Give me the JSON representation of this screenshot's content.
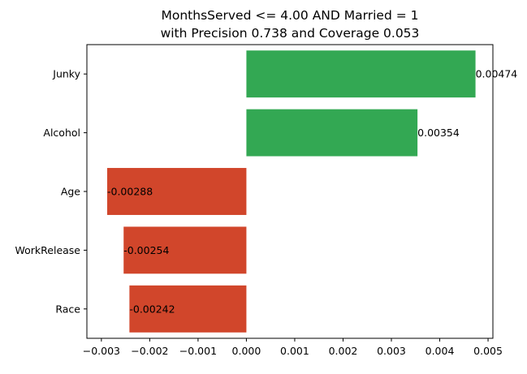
{
  "chart_data": {
    "type": "bar",
    "orientation": "horizontal",
    "title": "MonthsServed <= 4.00 AND Married = 1",
    "subtitle": "with Precision 0.738 and Coverage 0.053",
    "xlabel": "",
    "ylabel": "",
    "xlim": [
      -0.0033,
      0.0051
    ],
    "x_ticks": [
      -0.003,
      -0.002,
      -0.001,
      0.0,
      0.001,
      0.002,
      0.003,
      0.004,
      0.005
    ],
    "x_tick_labels": [
      "−0.003",
      "−0.002",
      "−0.001",
      "0.000",
      "0.001",
      "0.002",
      "0.003",
      "0.004",
      "0.005"
    ],
    "grid": false,
    "legend": "none",
    "categories": [
      "Junky",
      "Alcohol",
      "Age",
      "WorkRelease",
      "Race"
    ],
    "values": [
      0.00474,
      0.00354,
      -0.00288,
      -0.00254,
      -0.00242
    ],
    "value_labels": [
      "0.00474",
      "0.00354",
      "-0.00288",
      "-0.00254",
      "-0.00242"
    ],
    "colors": {
      "positive": "#33a853",
      "negative": "#d1462b"
    }
  }
}
